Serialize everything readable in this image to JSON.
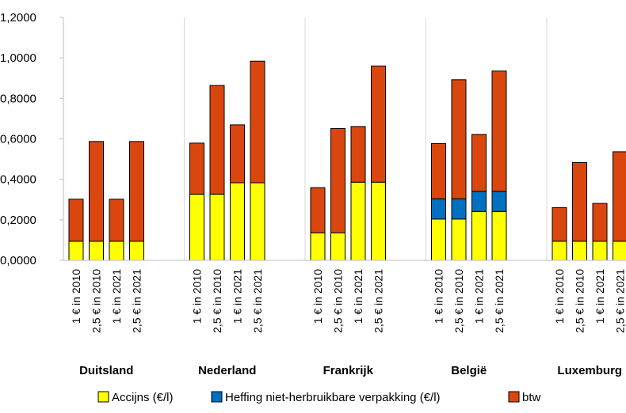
{
  "chart_data": {
    "type": "bar",
    "stacked": true,
    "groups": [
      {
        "name": "Duitsland",
        "categories": [
          "1 € in 2010",
          "2,5 € in 2010",
          "1 € in 2021",
          "2,5 € in 2021"
        ]
      },
      {
        "name": "Nederland",
        "categories": [
          "1 € in 2010",
          "2,5 € in 2010",
          "1 € in 2021",
          "2,5 € in 2021"
        ]
      },
      {
        "name": "Frankrijk",
        "categories": [
          "1 € in 2010",
          "2,5 € in 2010",
          "1 € in 2021",
          "2,5 € in 2021"
        ]
      },
      {
        "name": "België",
        "categories": [
          "1 € in 2010",
          "2,5 € in 2010",
          "1 € in 2021",
          "2,5 € in 2021"
        ]
      },
      {
        "name": "Luxemburg",
        "categories": [
          "1 € in 2010",
          "2,5 € in 2010",
          "1 € in 2021",
          "2,5 € in 2021"
        ]
      }
    ],
    "series": [
      {
        "name": "Accijns (€/l)",
        "color": "#ffff00",
        "values": [
          [
            0.094,
            0.094,
            0.094,
            0.094
          ],
          [
            0.327,
            0.327,
            0.383,
            0.383
          ],
          [
            0.136,
            0.136,
            0.386,
            0.386
          ],
          [
            0.204,
            0.204,
            0.241,
            0.241
          ],
          [
            0.094,
            0.094,
            0.094,
            0.094
          ]
        ]
      },
      {
        "name": "Heffing niet-herbruikbare verpakking (€/l)",
        "color": "#0070c0",
        "values": [
          [
            0,
            0,
            0,
            0
          ],
          [
            0,
            0,
            0,
            0
          ],
          [
            0,
            0,
            0,
            0
          ],
          [
            0.1,
            0.1,
            0.1,
            0.1
          ],
          [
            0,
            0,
            0,
            0
          ]
        ]
      },
      {
        "name": "btw",
        "color": "#d9470f",
        "values": [
          [
            0.208,
            0.493,
            0.208,
            0.493
          ],
          [
            0.252,
            0.537,
            0.286,
            0.601
          ],
          [
            0.223,
            0.515,
            0.275,
            0.574
          ],
          [
            0.273,
            0.588,
            0.281,
            0.594
          ],
          [
            0.166,
            0.389,
            0.187,
            0.442
          ]
        ]
      }
    ],
    "y_ticks": [
      "0,0000",
      "0,2000",
      "0,4000",
      "0,6000",
      "0,8000",
      "1,0000",
      "1,2000"
    ],
    "ylim": [
      0,
      1.2
    ],
    "grid": "vertical lines between country groups",
    "legend_position": "bottom"
  }
}
